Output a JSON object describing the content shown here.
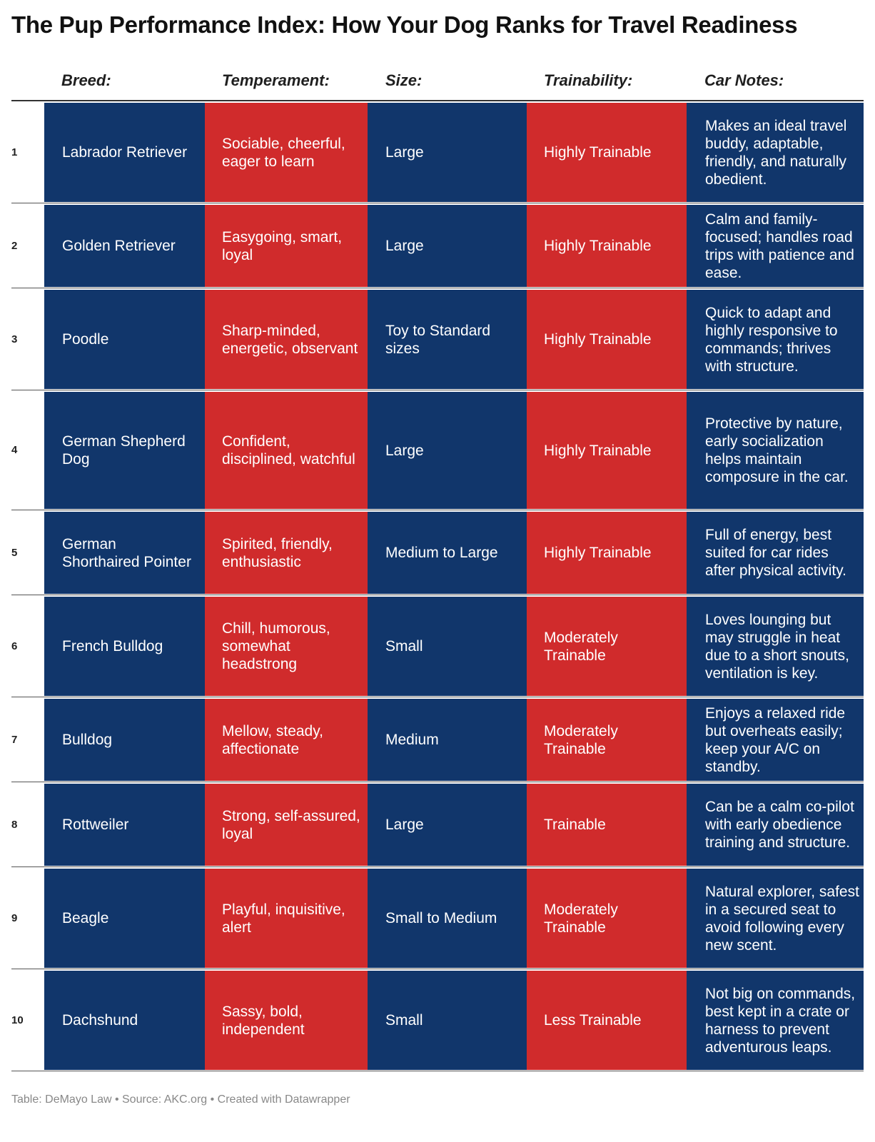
{
  "title": "The Pup Performance Index: How Your Dog Ranks for Travel Readiness",
  "chart_data": {
    "type": "table",
    "columns": [
      "Breed:",
      "Temperament:",
      "Size:",
      "Trainability:",
      "Car Notes:"
    ],
    "rows": [
      {
        "rank": "1",
        "breed": "Labrador Retriever",
        "temperament": "Sociable, cheerful, eager to learn",
        "size": "Large",
        "trainability": "Highly Trainable",
        "notes": "Makes an ideal travel buddy, adaptable, friendly, and naturally obedient."
      },
      {
        "rank": "2",
        "breed": "Golden Retriever",
        "temperament": "Easygoing, smart, loyal",
        "size": "Large",
        "trainability": "Highly Trainable",
        "notes": "Calm and family-focused; handles road trips with patience and ease."
      },
      {
        "rank": "3",
        "breed": "Poodle",
        "temperament": "Sharp-minded, energetic, observant",
        "size": "Toy to Standard sizes",
        "trainability": "Highly Trainable",
        "notes": "Quick to adapt and highly responsive to commands; thrives with structure."
      },
      {
        "rank": "4",
        "breed": "German Shepherd Dog",
        "temperament": "Confident, disciplined, watchful",
        "size": "Large",
        "trainability": "Highly Trainable",
        "notes": "Protective by nature, early socialization helps maintain composure in the car."
      },
      {
        "rank": "5",
        "breed": "German Shorthaired Pointer",
        "temperament": "Spirited, friendly, enthusiastic",
        "size": "Medium to Large",
        "trainability": "Highly Trainable",
        "notes": "Full of energy, best suited for car rides after physical activity."
      },
      {
        "rank": "6",
        "breed": "French Bulldog",
        "temperament": "Chill, humorous, somewhat headstrong",
        "size": "Small",
        "trainability": "Moderately Trainable",
        "notes": "Loves lounging but may struggle in heat due to a short snouts, ventilation is key."
      },
      {
        "rank": "7",
        "breed": "Bulldog",
        "temperament": "Mellow, steady, affectionate",
        "size": "Medium",
        "trainability": "Moderately Trainable",
        "notes": "Enjoys a relaxed ride but overheats easily; keep your A/C on standby."
      },
      {
        "rank": "8",
        "breed": "Rottweiler",
        "temperament": "Strong, self-assured, loyal",
        "size": "Large",
        "trainability": "Trainable",
        "notes": "Can be a calm co-pilot with early obedience training and structure."
      },
      {
        "rank": "9",
        "breed": "Beagle",
        "temperament": "Playful, inquisitive, alert",
        "size": "Small to Medium",
        "trainability": "Moderately Trainable",
        "notes": "Natural explorer, safest in a secured seat to avoid following every new scent."
      },
      {
        "rank": "10",
        "breed": "Dachshund",
        "temperament": "Sassy, bold, independent",
        "size": "Small",
        "trainability": "Less Trainable",
        "notes": "Not big on commands, best kept in a crate or harness to prevent adventurous leaps."
      }
    ]
  },
  "colors": {
    "blue_cell": "#11366b",
    "red_cell": "#d02b2c"
  },
  "footer": "Table: DeMayo Law • Source: AKC.org • Created with Datawrapper"
}
